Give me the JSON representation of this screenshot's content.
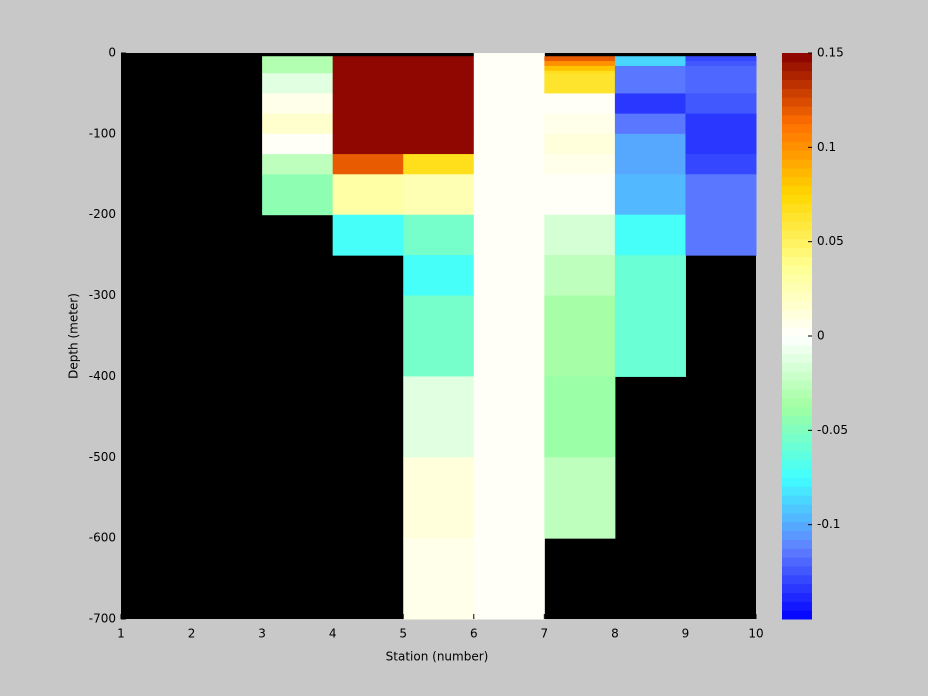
{
  "chart_data": {
    "type": "heatmap",
    "xlabel": "Station (number)",
    "ylabel": "Depth (meter)",
    "x": [
      1,
      2,
      3,
      4,
      5,
      6,
      7,
      8,
      9,
      10
    ],
    "y": [
      0,
      -4,
      -10,
      -16,
      -22,
      -25,
      -50,
      -75,
      -100,
      -125,
      -150,
      -200,
      -250,
      -300,
      -400,
      -500,
      -600,
      -700
    ],
    "z": [
      [
        null,
        null,
        null,
        null,
        null,
        0.002,
        null,
        null,
        null
      ],
      [
        null,
        null,
        -0.03,
        0.15,
        0.15,
        0.002,
        0.12,
        -0.085,
        -0.13
      ],
      [
        null,
        null,
        -0.03,
        0.15,
        0.15,
        0.002,
        0.1,
        -0.085,
        -0.125
      ],
      [
        null,
        null,
        -0.03,
        0.15,
        0.15,
        0.002,
        0.08,
        -0.115,
        -0.12
      ],
      [
        null,
        null,
        -0.03,
        0.15,
        0.15,
        0.002,
        0.07,
        -0.115,
        -0.12
      ],
      [
        null,
        null,
        -0.01,
        0.15,
        0.15,
        0.002,
        0.065,
        -0.115,
        -0.12
      ],
      [
        null,
        null,
        0.008,
        0.15,
        0.15,
        0.002,
        0.001,
        -0.135,
        -0.125
      ],
      [
        null,
        null,
        0.015,
        0.15,
        0.15,
        0.002,
        0.006,
        -0.115,
        -0.135
      ],
      [
        null,
        null,
        0.0,
        0.15,
        0.15,
        0.002,
        0.012,
        -0.1,
        -0.135
      ],
      [
        null,
        null,
        -0.025,
        0.12,
        0.07,
        0.002,
        0.006,
        -0.1,
        -0.13
      ],
      [
        null,
        null,
        -0.045,
        0.03,
        0.025,
        0.002,
        0.001,
        -0.095,
        -0.115
      ],
      [
        null,
        null,
        null,
        -0.075,
        -0.055,
        0.002,
        -0.015,
        -0.075,
        -0.115
      ],
      [
        null,
        null,
        null,
        null,
        -0.075,
        0.002,
        -0.025,
        -0.06,
        null
      ],
      [
        null,
        null,
        null,
        null,
        -0.055,
        0.002,
        -0.035,
        -0.06,
        null
      ],
      [
        null,
        null,
        null,
        null,
        -0.01,
        0.002,
        -0.04,
        null,
        null
      ],
      [
        null,
        null,
        null,
        null,
        0.01,
        0.002,
        -0.025,
        null,
        null
      ],
      [
        null,
        null,
        null,
        null,
        0.005,
        0.002,
        null,
        null,
        null
      ]
    ],
    "xlim": [
      1,
      10
    ],
    "ylim": [
      -700,
      0
    ],
    "xticks": [
      1,
      2,
      3,
      4,
      5,
      6,
      7,
      8,
      9,
      10
    ],
    "yticks": [
      0,
      -100,
      -200,
      -300,
      -400,
      -500,
      -600,
      -700
    ],
    "clim": [
      -0.15,
      0.15
    ],
    "cticks": [
      -0.1,
      -0.05,
      0,
      0.05,
      0.1,
      0.15
    ],
    "colormap": [
      "#0000ff",
      "#6080ff",
      "#40ffff",
      "#a0ffa0",
      "#ffffff",
      "#ffff90",
      "#ffd700",
      "#ff7000",
      "#880000"
    ],
    "colormap_levels": 64,
    "nan_color": "#000000"
  }
}
